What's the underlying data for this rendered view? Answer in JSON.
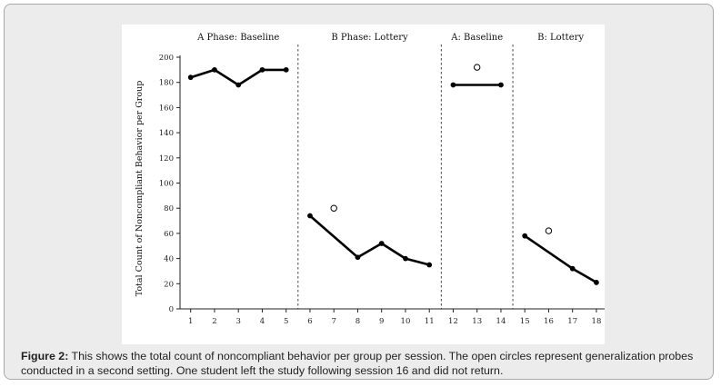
{
  "caption": {
    "label": "Figure 2:",
    "text": " This shows the total count of noncompliant behavior per group per session. The open circles represent generalization probes conducted in a second setting. One student left the study following session 16 and did not return."
  },
  "chart_data": {
    "type": "line",
    "title": "",
    "xlabel": "",
    "ylabel": "Total Count of Noncompliant Behavior per Group",
    "ylim": [
      0,
      200
    ],
    "yticks": [
      0,
      20,
      40,
      60,
      80,
      100,
      120,
      140,
      160,
      180,
      200
    ],
    "xlim": [
      0.5,
      18.5
    ],
    "xticks": [
      1,
      2,
      3,
      4,
      5,
      6,
      7,
      8,
      9,
      10,
      11,
      12,
      13,
      14,
      15,
      16,
      17,
      18
    ],
    "phases": [
      {
        "label": "A Phase: Baseline",
        "sessions": [
          1,
          5
        ]
      },
      {
        "label": "B Phase: Lottery",
        "sessions": [
          6,
          11
        ]
      },
      {
        "label": "A: Baseline",
        "sessions": [
          12,
          14
        ]
      },
      {
        "label": "B: Lottery",
        "sessions": [
          15,
          18
        ]
      }
    ],
    "phase_change_lines_after": [
      5.5,
      11.5,
      14.5
    ],
    "series": [
      {
        "segment": 1,
        "x": [
          1,
          2,
          3,
          4,
          5
        ],
        "y": [
          184,
          190,
          178,
          190,
          190
        ]
      },
      {
        "segment": 2,
        "x": [
          6,
          8,
          9,
          10,
          11
        ],
        "y": [
          74,
          41,
          52,
          40,
          35
        ]
      },
      {
        "segment": 3,
        "x": [
          12,
          14
        ],
        "y": [
          178,
          178
        ]
      },
      {
        "segment": 4,
        "x": [
          15,
          17,
          18
        ],
        "y": [
          58,
          32,
          21
        ]
      }
    ],
    "generalization_probes": {
      "x": [
        7,
        13,
        16
      ],
      "y": [
        80,
        192,
        62
      ]
    },
    "grid": false,
    "legend": "none"
  }
}
